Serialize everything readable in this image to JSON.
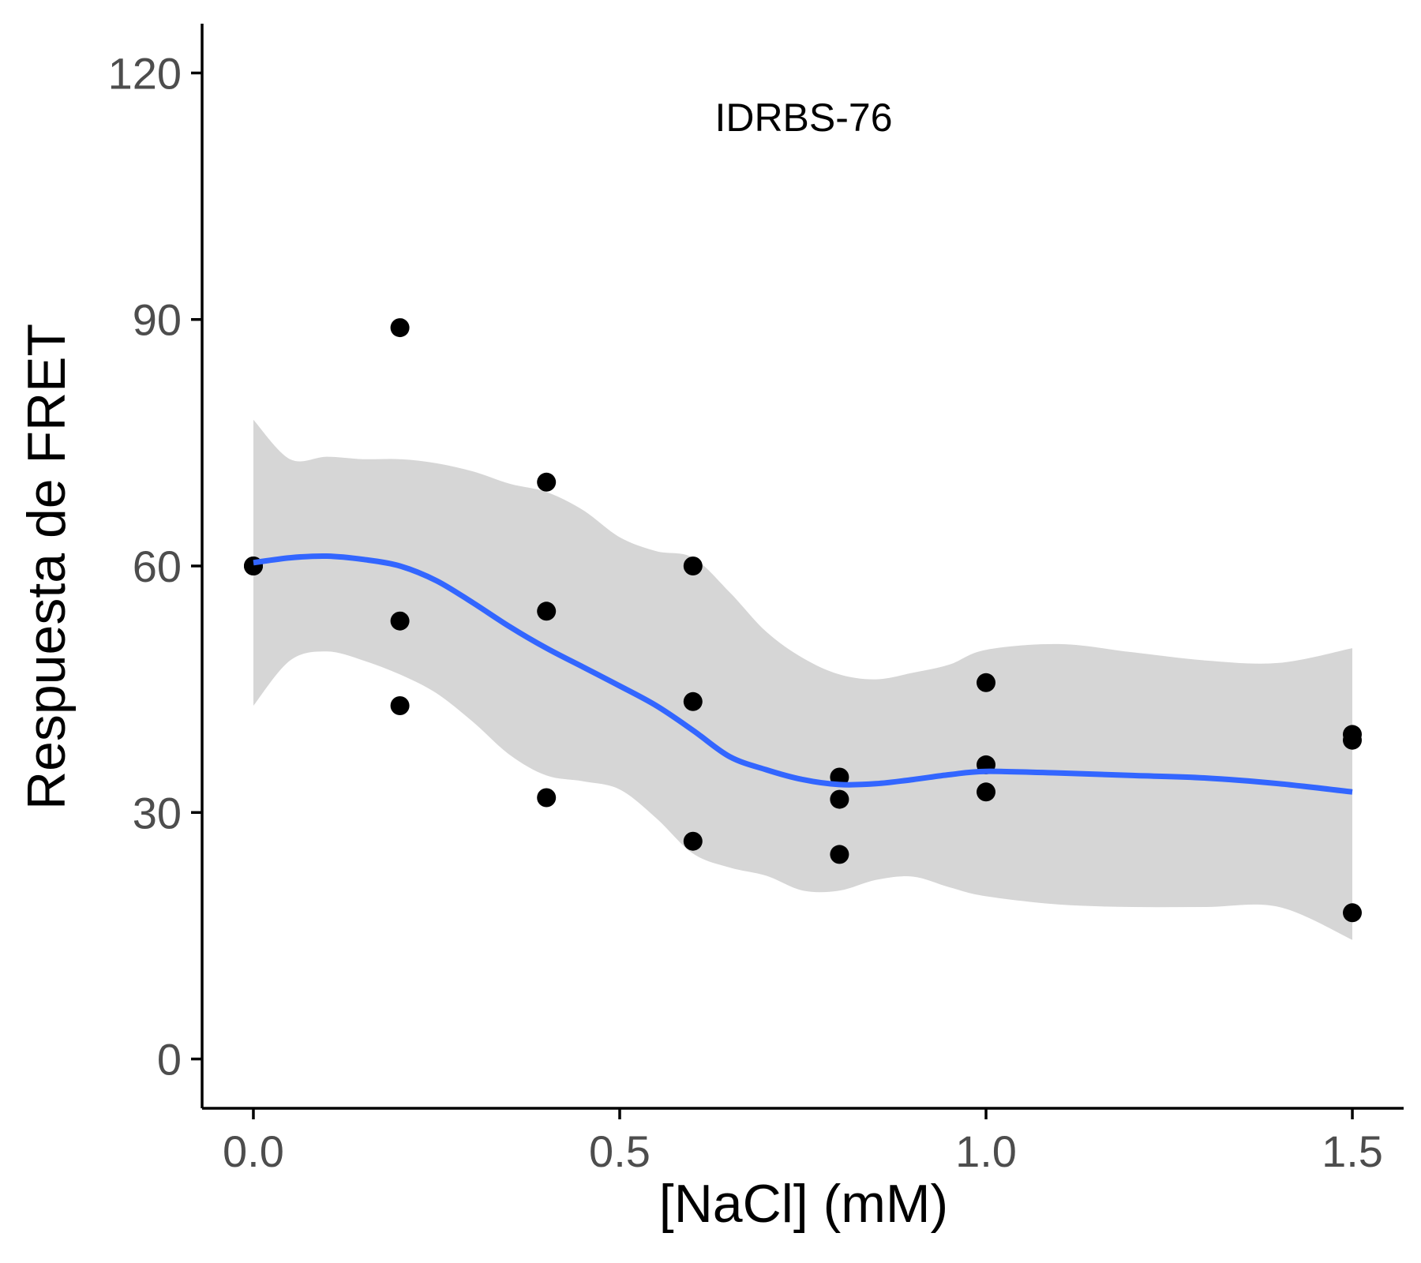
{
  "chart_data": {
    "type": "scatter",
    "annotation": "IDRBS-76",
    "xlabel": "[NaCl] (mM)",
    "ylabel": "Respuesta de FRET",
    "xlim": [
      -0.07,
      1.57
    ],
    "ylim": [
      -6,
      126
    ],
    "x_ticks": [
      0.0,
      0.5,
      1.0,
      1.5
    ],
    "x_tick_labels": [
      "0.0",
      "0.5",
      "1.0",
      "1.5"
    ],
    "y_ticks": [
      0,
      30,
      60,
      90,
      120
    ],
    "y_tick_labels": [
      "0",
      "30",
      "60",
      "90",
      "120"
    ],
    "grid": false,
    "points": [
      {
        "x": 0.0,
        "y": 60.0
      },
      {
        "x": 0.0,
        "y": 60.0
      },
      {
        "x": 0.2,
        "y": 89.0
      },
      {
        "x": 0.2,
        "y": 53.3
      },
      {
        "x": 0.2,
        "y": 43.0
      },
      {
        "x": 0.4,
        "y": 70.2
      },
      {
        "x": 0.4,
        "y": 54.5
      },
      {
        "x": 0.4,
        "y": 31.8
      },
      {
        "x": 0.6,
        "y": 60.0
      },
      {
        "x": 0.6,
        "y": 43.5
      },
      {
        "x": 0.6,
        "y": 26.5
      },
      {
        "x": 0.8,
        "y": 34.3
      },
      {
        "x": 0.8,
        "y": 31.6
      },
      {
        "x": 0.8,
        "y": 24.9
      },
      {
        "x": 1.0,
        "y": 45.8
      },
      {
        "x": 1.0,
        "y": 35.8
      },
      {
        "x": 1.0,
        "y": 32.5
      },
      {
        "x": 1.5,
        "y": 39.5
      },
      {
        "x": 1.5,
        "y": 38.8
      },
      {
        "x": 1.5,
        "y": 17.8
      }
    ],
    "smooth": {
      "x": [
        0.0,
        0.05,
        0.1,
        0.15,
        0.2,
        0.25,
        0.3,
        0.35,
        0.4,
        0.45,
        0.5,
        0.55,
        0.6,
        0.65,
        0.7,
        0.75,
        0.8,
        0.85,
        0.9,
        0.95,
        1.0,
        1.1,
        1.2,
        1.3,
        1.4,
        1.5
      ],
      "y": [
        60.4,
        61.0,
        61.2,
        60.8,
        60.0,
        58.2,
        55.5,
        52.6,
        50.0,
        47.7,
        45.4,
        43.0,
        40.0,
        36.8,
        35.2,
        34.0,
        33.4,
        33.5,
        34.0,
        34.6,
        35.0,
        34.8,
        34.5,
        34.2,
        33.5,
        32.5
      ],
      "lower": [
        43.0,
        48.5,
        49.6,
        48.5,
        46.8,
        44.5,
        41.0,
        37.0,
        34.5,
        33.8,
        32.8,
        29.3,
        25.0,
        23.3,
        22.3,
        20.5,
        20.5,
        21.8,
        22.2,
        20.9,
        19.8,
        18.8,
        18.5,
        18.5,
        18.5,
        14.5
      ],
      "upper": [
        77.8,
        73.0,
        73.3,
        73.0,
        73.0,
        72.5,
        71.5,
        70.0,
        69.0,
        66.8,
        63.5,
        61.8,
        61.0,
        56.8,
        52.0,
        48.8,
        46.8,
        46.2,
        47.0,
        48.0,
        49.8,
        50.5,
        49.5,
        48.5,
        48.2,
        50.0
      ]
    },
    "colors": {
      "smooth_line": "#3366ff",
      "ribbon": "#d6d6d6",
      "points": "#000000",
      "axis": "#000000",
      "tick_text": "#4d4d4d"
    }
  }
}
